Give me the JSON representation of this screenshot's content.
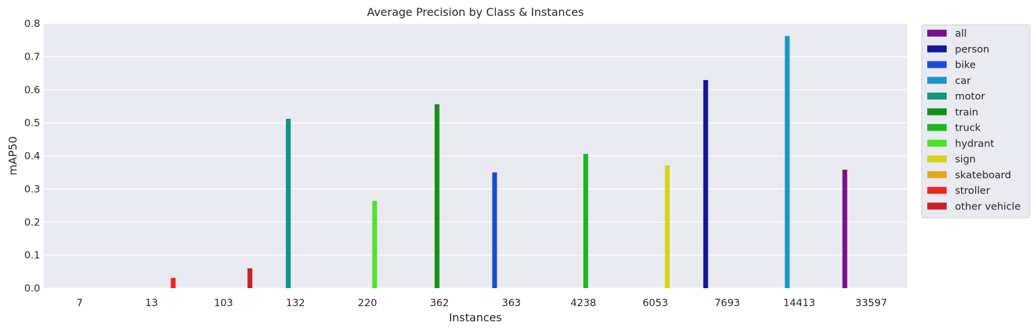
{
  "chart_data": {
    "type": "bar",
    "title": "Average Precision by Class & Instances",
    "xlabel": "Instances",
    "ylabel": "mAP50",
    "ylim": [
      0,
      0.8
    ],
    "yticks": [
      "0.0",
      "0.1",
      "0.2",
      "0.3",
      "0.4",
      "0.5",
      "0.6",
      "0.7",
      "0.8"
    ],
    "categories": [
      "7",
      "13",
      "103",
      "132",
      "220",
      "362",
      "363",
      "4238",
      "6053",
      "7693",
      "14413",
      "33597"
    ],
    "grid": true,
    "legend_position": "outside-right",
    "series": [
      {
        "name": "all",
        "color": "#7b0f8c",
        "values": [
          null,
          null,
          null,
          null,
          null,
          null,
          null,
          null,
          null,
          null,
          null,
          0.358
        ]
      },
      {
        "name": "person",
        "color": "#16159b",
        "values": [
          null,
          null,
          null,
          null,
          null,
          null,
          null,
          null,
          null,
          0.629,
          null,
          null
        ]
      },
      {
        "name": "bike",
        "color": "#1b4fd0",
        "values": [
          null,
          null,
          null,
          null,
          null,
          null,
          0.35,
          null,
          null,
          null,
          null,
          null
        ]
      },
      {
        "name": "car",
        "color": "#1898c8",
        "values": [
          null,
          null,
          null,
          null,
          null,
          null,
          null,
          null,
          null,
          null,
          0.762,
          null
        ]
      },
      {
        "name": "motor",
        "color": "#139485",
        "values": [
          null,
          null,
          null,
          0.512,
          null,
          null,
          null,
          null,
          null,
          null,
          null,
          null
        ]
      },
      {
        "name": "train",
        "color": "#148f17",
        "values": [
          null,
          null,
          null,
          null,
          null,
          0.556,
          null,
          null,
          null,
          null,
          null,
          null
        ]
      },
      {
        "name": "truck",
        "color": "#1ab81d",
        "values": [
          null,
          null,
          null,
          null,
          null,
          null,
          null,
          0.406,
          null,
          null,
          null,
          null
        ]
      },
      {
        "name": "hydrant",
        "color": "#4fe32a",
        "values": [
          null,
          null,
          null,
          null,
          0.264,
          null,
          null,
          null,
          null,
          null,
          null,
          null
        ]
      },
      {
        "name": "sign",
        "color": "#d4d41c",
        "values": [
          null,
          null,
          null,
          null,
          null,
          null,
          null,
          null,
          0.371,
          null,
          null,
          null
        ]
      },
      {
        "name": "skateboard",
        "color": "#e3a51a",
        "values": [
          0.0,
          null,
          null,
          null,
          null,
          null,
          null,
          null,
          null,
          null,
          null,
          null
        ]
      },
      {
        "name": "stroller",
        "color": "#e52a22",
        "values": [
          null,
          0.031,
          null,
          null,
          null,
          null,
          null,
          null,
          null,
          null,
          null,
          null
        ]
      },
      {
        "name": "other vehicle",
        "color": "#c42322",
        "values": [
          null,
          null,
          0.06,
          null,
          null,
          null,
          null,
          null,
          null,
          null,
          null,
          null
        ]
      }
    ]
  }
}
